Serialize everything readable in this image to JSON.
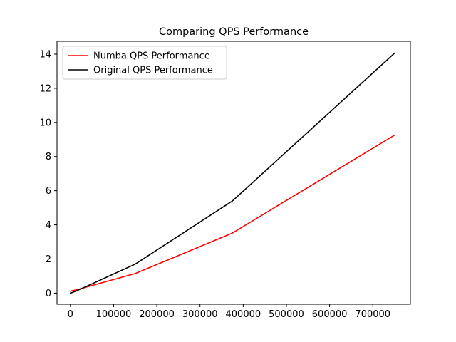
{
  "chart_data": {
    "type": "line",
    "title": "Comparing QPS Performance",
    "xlabel": "",
    "ylabel": "",
    "xlim": [
      -31000,
      787000
    ],
    "ylim": [
      -0.65,
      14.75
    ],
    "x_ticks": [
      0,
      100000,
      200000,
      300000,
      400000,
      500000,
      600000,
      700000
    ],
    "x_tick_labels": [
      "0",
      "100000",
      "200000",
      "300000",
      "400000",
      "500000",
      "600000",
      "700000"
    ],
    "y_ticks": [
      0,
      2,
      4,
      6,
      8,
      10,
      12,
      14
    ],
    "y_tick_labels": [
      "0",
      "2",
      "4",
      "6",
      "8",
      "10",
      "12",
      "14"
    ],
    "grid": false,
    "legend_position": "top-left",
    "series": [
      {
        "name": "Numba QPS Performance",
        "color": "#ff0000",
        "x": [
          0,
          15000,
          150000,
          375000,
          750000
        ],
        "y": [
          0.12,
          0.2,
          1.15,
          3.52,
          9.25
        ]
      },
      {
        "name": "Original QPS Performance",
        "color": "#000000",
        "x": [
          0,
          15000,
          150000,
          375000,
          750000
        ],
        "y": [
          0.0,
          0.14,
          1.7,
          5.4,
          14.05
        ]
      }
    ]
  }
}
